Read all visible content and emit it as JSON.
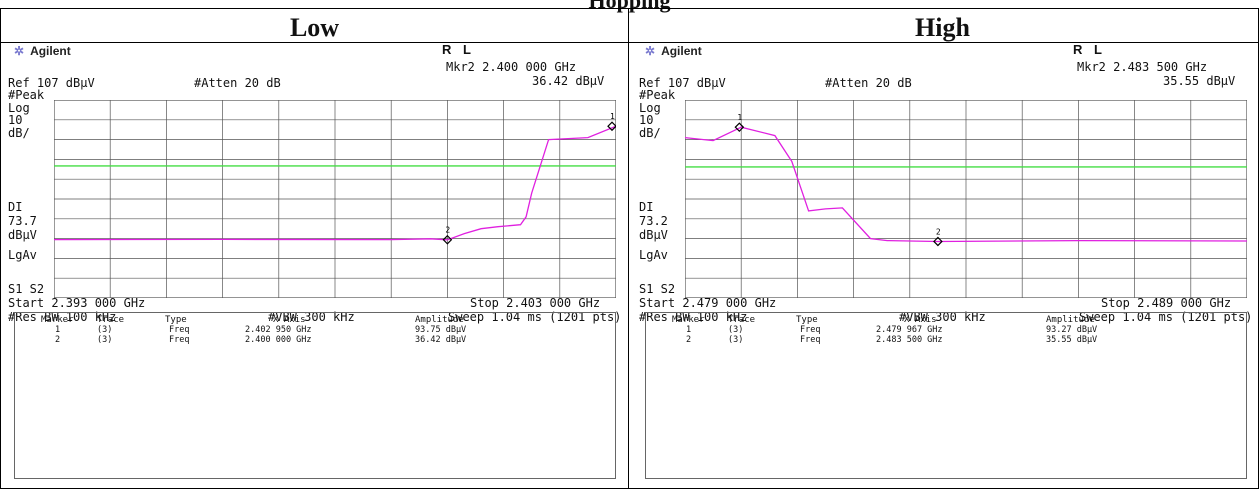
{
  "page_title": "Hopping",
  "panels": [
    {
      "heading": "Low",
      "brand": "Agilent",
      "rl": "R L",
      "mkr_readout": "Mkr2  2.400 000 GHz",
      "mkr_amp": "36.42 dBμV",
      "ref": "Ref 107 dBμV",
      "atten": "#Atten 20 dB",
      "peak": "#Peak",
      "log": "Log",
      "ten": "10",
      "db_div": "dB/",
      "dl": "DI",
      "dl_val": "73.7",
      "dl_unit": "dBμV",
      "lgav": "LgAv",
      "s1s2": "S1  S2",
      "start": "Start 2.393 000 GHz",
      "stop": "Stop 2.403 000 GHz",
      "rbw": "#Res BW 100 kHz",
      "vbw": "#VBW 300 kHz",
      "sweep": "Sweep 1.04 ms (1201 pts)",
      "table_headers": [
        "Marker",
        "Trace",
        "Type",
        "X Axis",
        "Amplitude"
      ],
      "table_rows": [
        [
          "1",
          "(3)",
          "Freq",
          "2.402 950 GHz",
          "93.75 dBμV"
        ],
        [
          "2",
          "(3)",
          "Freq",
          "2.400 000 GHz",
          "36.42 dBμV"
        ]
      ],
      "marker_labels": [
        "1",
        "2"
      ]
    },
    {
      "heading": "High",
      "brand": "Agilent",
      "rl": "R L",
      "mkr_readout": "Mkr2  2.483 500 GHz",
      "mkr_amp": "35.55 dBμV",
      "ref": "Ref 107 dBμV",
      "atten": "#Atten 20 dB",
      "peak": "#Peak",
      "log": "Log",
      "ten": "10",
      "db_div": "dB/",
      "dl": "DI",
      "dl_val": "73.2",
      "dl_unit": "dBμV",
      "lgav": "LgAv",
      "s1s2": "S1  S2",
      "start": "Start 2.479 000 GHz",
      "stop": "Stop 2.489 000 GHz",
      "rbw": "#Res BW 100 kHz",
      "vbw": "#VBW 300 kHz",
      "sweep": "Sweep 1.04 ms (1201 pts)",
      "table_headers": [
        "Marker",
        "Trace",
        "Type",
        "X Axis",
        "Amplitude"
      ],
      "table_rows": [
        [
          "1",
          "(3)",
          "Freq",
          "2.479 967 GHz",
          "93.27 dBμV"
        ],
        [
          "2",
          "(3)",
          "Freq",
          "2.483 500 GHz",
          "35.55 dBμV"
        ]
      ],
      "marker_labels": [
        "1",
        "2"
      ]
    }
  ],
  "colors": {
    "trace": "#e020e0",
    "display_line": "#44dd44",
    "grid": "#555555"
  },
  "chart_data": [
    {
      "type": "line",
      "x_unit": "GHz",
      "xlim": [
        2.393,
        2.403
      ],
      "ylim": [
        7,
        107
      ],
      "y_unit": "dBμV",
      "grid": true,
      "display_line": 73.7,
      "series": [
        {
          "x": [
            2.393,
            2.396,
            2.399,
            2.3997,
            2.4,
            2.4003,
            2.4006,
            2.4009,
            2.4013,
            2.4014,
            2.4015,
            2.4018,
            2.4025,
            2.403
          ],
          "y": [
            36.5,
            36.6,
            36.5,
            36.9,
            36.4,
            39.5,
            42,
            43,
            44,
            48,
            60,
            87,
            88,
            93.75
          ]
        }
      ],
      "markers": [
        {
          "label": "1",
          "x": 2.40295,
          "y": 93.75
        },
        {
          "label": "2",
          "x": 2.4,
          "y": 36.42
        }
      ]
    },
    {
      "type": "line",
      "x_unit": "GHz",
      "xlim": [
        2.479,
        2.489
      ],
      "ylim": [
        7,
        107
      ],
      "y_unit": "dBμV",
      "grid": true,
      "display_line": 73.2,
      "series": [
        {
          "x": [
            2.479,
            2.4795,
            2.48,
            2.4806,
            2.4809,
            2.4812,
            2.4815,
            2.4818,
            2.4823,
            2.4826,
            2.4835,
            2.486,
            2.489
          ],
          "y": [
            88,
            86.5,
            93.27,
            89,
            76,
            51,
            52,
            52.5,
            37,
            36,
            35.55,
            36,
            35.8
          ]
        }
      ],
      "markers": [
        {
          "label": "1",
          "x": 2.479967,
          "y": 93.27
        },
        {
          "label": "2",
          "x": 2.4835,
          "y": 35.55
        }
      ]
    }
  ]
}
